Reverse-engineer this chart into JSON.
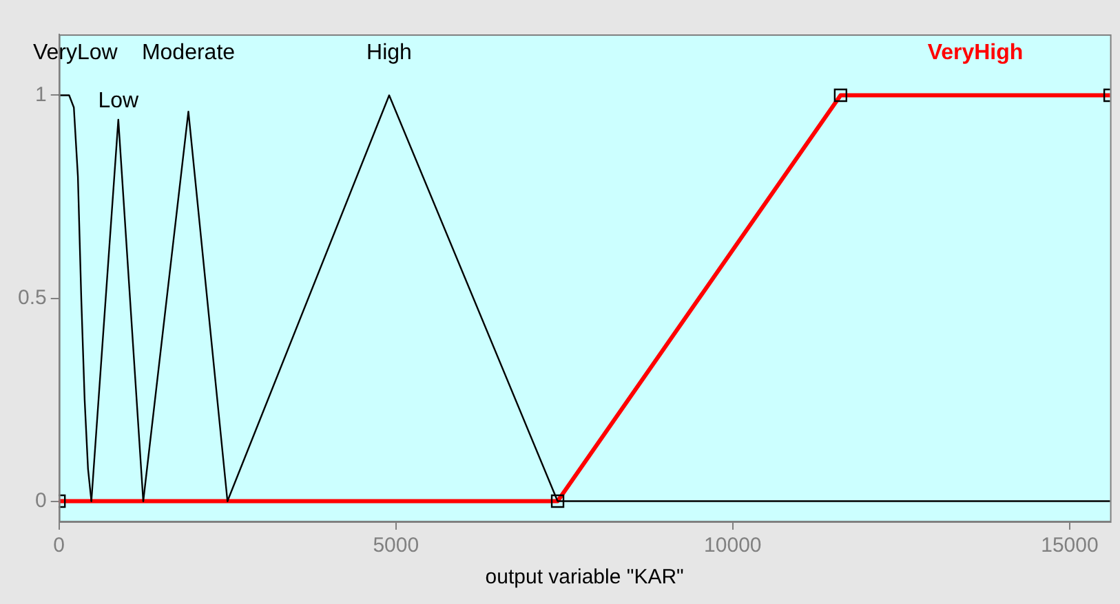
{
  "chart_data": {
    "type": "line",
    "xlabel": "output variable \"KAR\"",
    "xlim": [
      0,
      15600
    ],
    "ylim": [
      -0.05,
      1.15
    ],
    "xticks": [
      0,
      5000,
      10000,
      15000
    ],
    "yticks": [
      0,
      0.5,
      1
    ],
    "grid": false,
    "legend": false,
    "marker": "none",
    "line_style": "solid",
    "series": [
      {
        "name": "VeryLow",
        "color": "#000000",
        "x": [
          0,
          150,
          220,
          280,
          330,
          380,
          430,
          480
        ],
        "values": [
          1,
          1,
          0.97,
          0.8,
          0.5,
          0.25,
          0.08,
          0
        ]
      },
      {
        "name": "Low",
        "color": "#000000",
        "x": [
          480,
          880,
          1250
        ],
        "values": [
          0,
          0.94,
          0
        ]
      },
      {
        "name": "Moderate",
        "color": "#000000",
        "x": [
          1250,
          1920,
          2500
        ],
        "values": [
          0,
          0.96,
          0
        ]
      },
      {
        "name": "High",
        "color": "#000000",
        "x": [
          2500,
          4900,
          7400,
          15600
        ],
        "values": [
          0,
          1,
          0,
          0
        ]
      },
      {
        "name": "VeryHigh",
        "color": "#ff0000",
        "marker": "square",
        "x": [
          0,
          7400,
          11600,
          15600
        ],
        "values": [
          0,
          0,
          1,
          1
        ]
      }
    ]
  }
}
